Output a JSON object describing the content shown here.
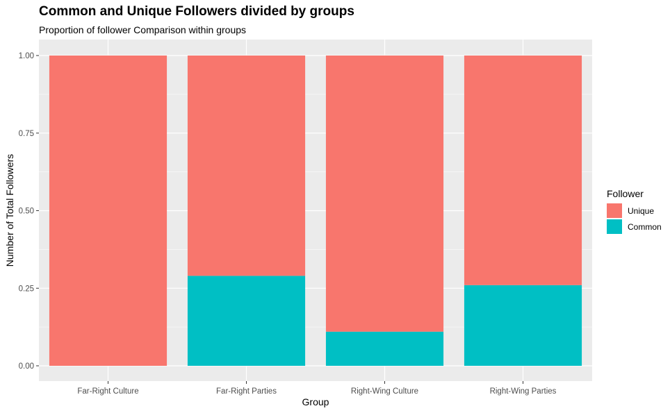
{
  "chart_data": {
    "type": "bar",
    "stacked": true,
    "title": "Common and Unique Followers divided by groups",
    "subtitle": "Proportion of follower Comparison within groups",
    "xlabel": "Group",
    "ylabel": "Number of Total Followers",
    "categories": [
      "Far-Right Culture",
      "Far-Right Parties",
      "Right-Wing Culture",
      "Right-Wing Parties"
    ],
    "series": [
      {
        "name": "Unique",
        "color": "#F8766D",
        "values": [
          1.0,
          0.71,
          0.89,
          0.74
        ]
      },
      {
        "name": "Common",
        "color": "#00BFC4",
        "values": [
          0.0,
          0.29,
          0.11,
          0.26
        ]
      }
    ],
    "ylim": [
      0,
      1
    ],
    "yticks": [
      "0.00",
      "0.25",
      "0.50",
      "0.75",
      "1.00"
    ],
    "legend": {
      "title": "Follower",
      "placement": "right"
    },
    "grid": true,
    "panel_color": "#EBEBEB"
  }
}
